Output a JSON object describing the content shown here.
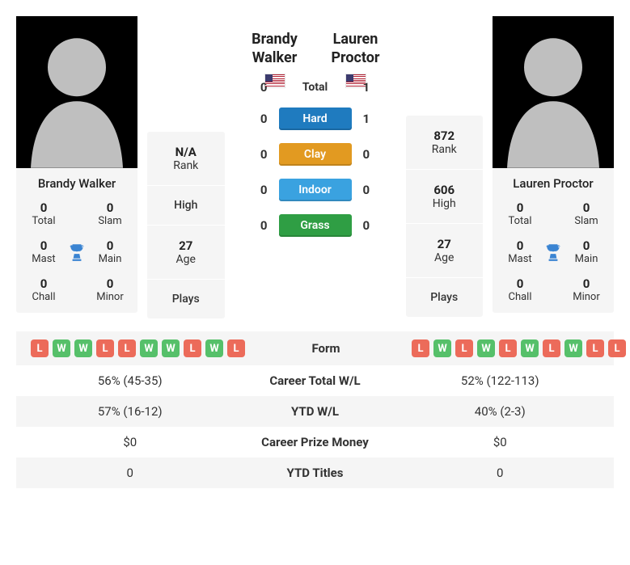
{
  "colors": {
    "panel_bg": "#f5f5f5",
    "win": "#56c06a",
    "loss": "#ec6b5a",
    "hard": "#1f7bbf",
    "clay": "#e29a21",
    "indoor": "#3aa2e0",
    "grass": "#2f9e44",
    "trophy": "#3a84d2"
  },
  "labels": {
    "rank": "Rank",
    "high": "High",
    "age": "Age",
    "plays": "Plays",
    "total": "Total",
    "hard": "Hard",
    "clay": "Clay",
    "indoor": "Indoor",
    "grass": "Grass",
    "form": "Form",
    "career_wl": "Career Total W/L",
    "ytd_wl": "YTD W/L",
    "prize": "Career Prize Money",
    "ytd_titles": "YTD Titles",
    "stat_total": "Total",
    "stat_slam": "Slam",
    "stat_mast": "Mast",
    "stat_main": "Main",
    "stat_chall": "Chall",
    "stat_minor": "Minor"
  },
  "h2h": {
    "total": {
      "p1": "0",
      "p2": "1"
    },
    "hard": {
      "p1": "0",
      "p2": "1"
    },
    "clay": {
      "p1": "0",
      "p2": "0"
    },
    "indoor": {
      "p1": "0",
      "p2": "0"
    },
    "grass": {
      "p1": "0",
      "p2": "0"
    }
  },
  "player1": {
    "name": "Brandy Walker",
    "first": "Brandy",
    "last": "Walker",
    "rank": "N/A",
    "high": "",
    "age": "27",
    "plays": "",
    "titles": {
      "total": "0",
      "slam": "0",
      "mast": "0",
      "main": "0",
      "chall": "0",
      "minor": "0"
    },
    "form": [
      "L",
      "W",
      "W",
      "L",
      "L",
      "W",
      "W",
      "L",
      "W",
      "L"
    ],
    "career_wl": "56% (45-35)",
    "ytd_wl": "57% (16-12)",
    "prize": "$0",
    "ytd_titles": "0"
  },
  "player2": {
    "name": "Lauren Proctor",
    "first": "Lauren",
    "last": "Proctor",
    "rank": "872",
    "high": "606",
    "age": "27",
    "plays": "",
    "titles": {
      "total": "0",
      "slam": "0",
      "mast": "0",
      "main": "0",
      "chall": "0",
      "minor": "0"
    },
    "form": [
      "L",
      "W",
      "L",
      "W",
      "L",
      "W",
      "L",
      "W",
      "L",
      "L"
    ],
    "career_wl": "52% (122-113)",
    "ytd_wl": "40% (2-3)",
    "prize": "$0",
    "ytd_titles": "0"
  }
}
